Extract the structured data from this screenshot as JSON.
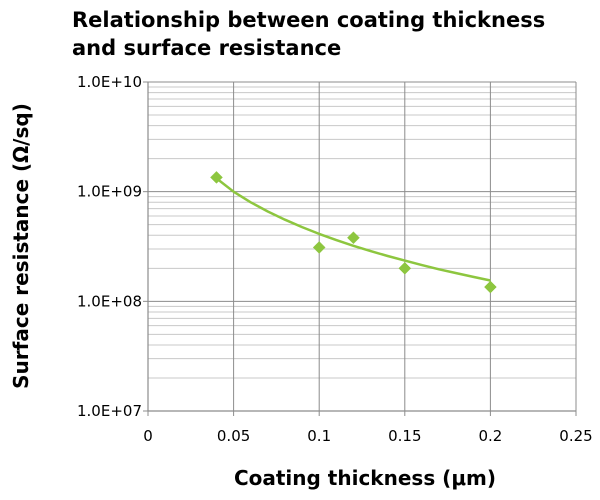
{
  "chart_data": {
    "type": "scatter",
    "title": "Relationship between coating thickness and surface resistance",
    "xlabel": "Coating thickness (μm)",
    "ylabel": "Surface resistance (Ω/sq)",
    "xlim": [
      0,
      0.25
    ],
    "ylim": [
      10000000,
      10000000000
    ],
    "yscale": "log",
    "grid": true,
    "x_ticks": [
      {
        "value": 0,
        "label": "0"
      },
      {
        "value": 0.05,
        "label": "0.05"
      },
      {
        "value": 0.1,
        "label": "0.1"
      },
      {
        "value": 0.15,
        "label": "0.15"
      },
      {
        "value": 0.2,
        "label": "0.2"
      },
      {
        "value": 0.25,
        "label": "0.25"
      }
    ],
    "y_ticks": [
      {
        "value": 10000000,
        "label": "1.0E+07"
      },
      {
        "value": 100000000,
        "label": "1.0E+08"
      },
      {
        "value": 1000000000,
        "label": "1.0E+09"
      },
      {
        "value": 10000000000,
        "label": "1.0E+10"
      }
    ],
    "series": [
      {
        "x": [
          0.04,
          0.1,
          0.12,
          0.15,
          0.2
        ],
        "y": [
          1350000000,
          310000000,
          380000000,
          200000000,
          135000000
        ],
        "marker": "diamond",
        "color": "#8dc63f"
      }
    ],
    "trendline": {
      "type": "power",
      "color": "#8dc63f",
      "x": [
        0.04,
        0.05,
        0.06,
        0.07,
        0.08,
        0.09,
        0.1,
        0.11,
        0.12,
        0.13,
        0.14,
        0.15,
        0.16,
        0.17,
        0.18,
        0.19,
        0.2
      ],
      "y": [
        1320000000,
        1000000000,
        800000000,
        660000000,
        555000000,
        475000000,
        412000000,
        362000000,
        321000000,
        287000000,
        259000000,
        235000000,
        214000000,
        196000000,
        181000000,
        167000000,
        155000000
      ]
    },
    "colors": {
      "gridline": "#c8c8c8",
      "major_gridline": "#8c8c8c",
      "axis": "#8c8c8c"
    }
  }
}
